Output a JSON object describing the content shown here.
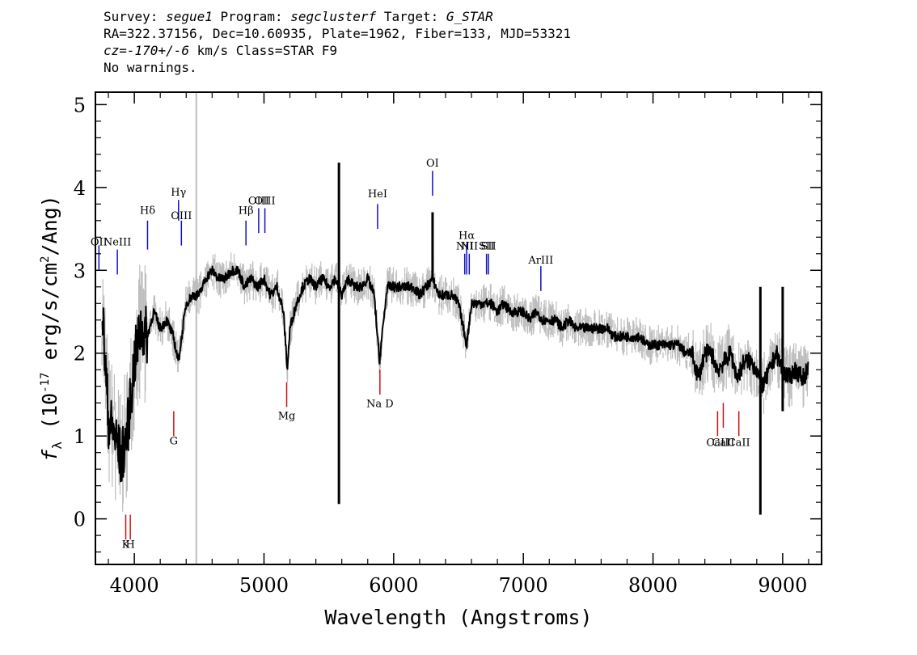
{
  "header": {
    "line1": {
      "survey_label": "Survey:",
      "survey": "segue1",
      "program_label": "Program:",
      "program": "segclusterf",
      "target_label": "Target:",
      "target": "G_STAR"
    },
    "line2": "RA=322.37156, Dec=10.60935, Plate=1962, Fiber=133, MJD=53321",
    "line3": {
      "cz_label": "cz=",
      "cz": "-170+/-6",
      "rest": " km/s Class=STAR F9"
    },
    "line4": "No warnings."
  },
  "colors": {
    "flux": "#000000",
    "noise": "#bdbdbd",
    "emission_lines": "#1010c0",
    "absorption_lines": "#d01010"
  },
  "chart_data": {
    "type": "line",
    "xlabel": "Wavelength (Angstroms)",
    "ylabel": "f_λ (10^-17 erg/s/cm^2/Ang)",
    "xlim": [
      3700,
      9300
    ],
    "ylim": [
      -0.55,
      5.15
    ],
    "xticks": [
      4000,
      5000,
      6000,
      7000,
      8000,
      9000
    ],
    "yticks": [
      0,
      1,
      2,
      3,
      4,
      5
    ],
    "series": [
      {
        "x": [
          3750,
          3800,
          3850,
          3900,
          3950,
          4000,
          4050,
          4100,
          4150,
          4200,
          4250,
          4300,
          4340,
          4400,
          4450,
          4500,
          4550,
          4600,
          4650,
          4700,
          4750,
          4800,
          4850,
          4900,
          4950,
          5000,
          5050,
          5100,
          5150,
          5180,
          5200,
          5250,
          5300,
          5350,
          5400,
          5450,
          5500,
          5550,
          5600,
          5650,
          5700,
          5750,
          5800,
          5850,
          5890,
          5950,
          6000,
          6050,
          6100,
          6150,
          6200,
          6250,
          6300,
          6350,
          6400,
          6450,
          6500,
          6563,
          6600,
          6650,
          6700,
          6750,
          6800,
          6850,
          6900,
          6950,
          7000,
          7050,
          7100,
          7150,
          7200,
          7250,
          7300,
          7350,
          7400,
          7450,
          7500,
          7550,
          7600,
          7650,
          7700,
          7750,
          7800,
          7850,
          7900,
          7950,
          8000,
          8050,
          8100,
          8150,
          8200,
          8250,
          8300,
          8350,
          8400,
          8450,
          8500,
          8550,
          8600,
          8650,
          8700,
          8750,
          8800,
          8850,
          8900,
          8950,
          9000,
          9050,
          9100,
          9150,
          9200
        ],
        "values": [
          2.6,
          1.2,
          1.0,
          0.7,
          1.1,
          1.9,
          2.3,
          2.2,
          2.5,
          2.3,
          2.4,
          2.2,
          1.9,
          2.6,
          2.7,
          2.7,
          2.9,
          3.0,
          2.9,
          2.9,
          3.0,
          3.0,
          2.8,
          2.9,
          2.8,
          2.9,
          2.7,
          2.8,
          2.5,
          1.8,
          2.3,
          2.6,
          2.8,
          2.9,
          2.8,
          2.9,
          2.8,
          2.9,
          2.7,
          2.9,
          2.8,
          2.8,
          2.9,
          2.7,
          1.9,
          2.8,
          2.8,
          2.8,
          2.8,
          2.8,
          2.7,
          2.8,
          2.9,
          2.7,
          2.7,
          2.7,
          2.6,
          2.1,
          2.6,
          2.6,
          2.6,
          2.6,
          2.5,
          2.6,
          2.5,
          2.5,
          2.5,
          2.4,
          2.5,
          2.4,
          2.4,
          2.4,
          2.3,
          2.4,
          2.3,
          2.3,
          2.3,
          2.3,
          2.3,
          2.3,
          2.2,
          2.2,
          2.2,
          2.2,
          2.2,
          2.1,
          2.1,
          2.1,
          2.1,
          2.1,
          2.1,
          2.0,
          2.0,
          1.7,
          2.0,
          2.0,
          1.8,
          1.9,
          2.0,
          1.7,
          1.9,
          1.9,
          1.8,
          1.6,
          1.8,
          2.0,
          1.8,
          1.7,
          1.8,
          1.7,
          1.8
        ]
      }
    ],
    "spikes": [
      {
        "x": 5578,
        "low": 0.18,
        "high": 4.3
      },
      {
        "x": 6300,
        "low": 2.9,
        "high": 3.7
      },
      {
        "x": 8828,
        "low": 0.05,
        "high": 2.8
      },
      {
        "x": 9000,
        "low": 1.3,
        "high": 2.8
      }
    ],
    "noise_lines": [
      {
        "x": 4478
      }
    ],
    "emission_lines": [
      {
        "label": "OII",
        "x": 3727,
        "ymin": 3.0,
        "ymax": 3.3,
        "label_y": 3.3
      },
      {
        "label": "NeIII",
        "x": 3869,
        "ymin": 2.95,
        "ymax": 3.25,
        "label_y": 3.3
      },
      {
        "label": "Hδ",
        "x": 4102,
        "ymin": 3.25,
        "ymax": 3.6,
        "label_y": 3.68
      },
      {
        "label": "Hγ",
        "x": 4341,
        "ymin": 3.6,
        "ymax": 3.85,
        "label_y": 3.9
      },
      {
        "label": "OIII",
        "x": 4363,
        "ymin": 3.3,
        "ymax": 3.6,
        "label_y": 3.62
      },
      {
        "label": "Hβ",
        "x": 4861,
        "ymin": 3.3,
        "ymax": 3.6,
        "label_y": 3.68
      },
      {
        "label": "OIII",
        "x": 4959,
        "ymin": 3.45,
        "ymax": 3.75,
        "label_y": 3.8
      },
      {
        "label": "OIII",
        "x": 5007,
        "ymin": 3.45,
        "ymax": 3.75,
        "label_y": 3.8
      },
      {
        "label": "HeI",
        "x": 5876,
        "ymin": 3.5,
        "ymax": 3.8,
        "label_y": 3.88
      },
      {
        "label": "OI",
        "x": 6300,
        "ymin": 3.9,
        "ymax": 4.2,
        "label_y": 4.25
      },
      {
        "label": "NII",
        "x": 6548,
        "ymin": 2.95,
        "ymax": 3.2,
        "label_y": 3.25
      },
      {
        "label": "Hα",
        "x": 6563,
        "ymin": 2.95,
        "ymax": 3.32,
        "label_y": 3.38
      },
      {
        "label": "NII",
        "x": 6583,
        "ymin": 2.95,
        "ymax": 3.2,
        "label_y": 3.25
      },
      {
        "label": "SII",
        "x": 6716,
        "ymin": 2.95,
        "ymax": 3.2,
        "label_y": 3.25
      },
      {
        "label": "SII",
        "x": 6731,
        "ymin": 2.95,
        "ymax": 3.2,
        "label_y": 3.25
      },
      {
        "label": "ArIII",
        "x": 7135,
        "ymin": 2.75,
        "ymax": 3.05,
        "label_y": 3.08
      }
    ],
    "absorption_lines": [
      {
        "label": "K",
        "x": 3934,
        "ymin": -0.25,
        "ymax": 0.05,
        "label_y": -0.35
      },
      {
        "label": "H",
        "x": 3969,
        "ymin": -0.25,
        "ymax": 0.05,
        "label_y": -0.35
      },
      {
        "label": "G",
        "x": 4304,
        "ymin": 1.0,
        "ymax": 1.3,
        "label_y": 0.9
      },
      {
        "label": "Mg",
        "x": 5175,
        "ymin": 1.35,
        "ymax": 1.65,
        "label_y": 1.2
      },
      {
        "label": "Na D",
        "x": 5894,
        "ymin": 1.5,
        "ymax": 1.8,
        "label_y": 1.35
      },
      {
        "label": "CaII",
        "x": 8498,
        "ymin": 1.0,
        "ymax": 1.3,
        "label_y": 0.88
      },
      {
        "label": "CaII",
        "x": 8542,
        "ymin": 1.1,
        "ymax": 1.4,
        "label_y": 0.88
      },
      {
        "label": "CaII",
        "x": 8662,
        "ymin": 1.0,
        "ymax": 1.3,
        "label_y": 0.88
      }
    ]
  }
}
